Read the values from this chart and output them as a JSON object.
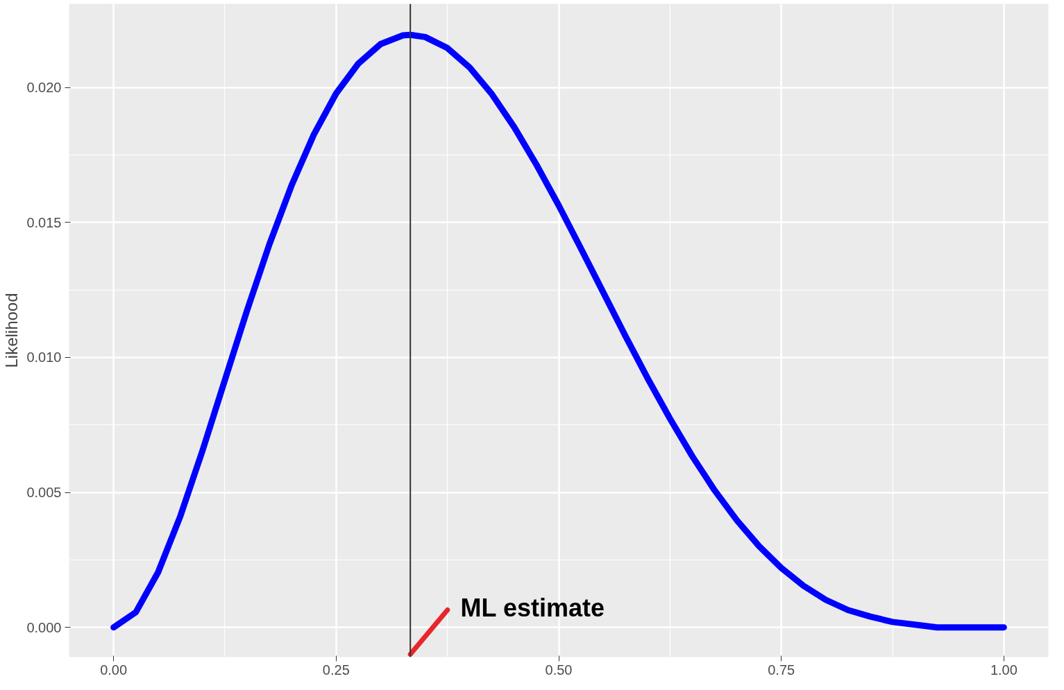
{
  "chart_data": {
    "type": "line",
    "ylabel": "Likelihood",
    "x": [
      0,
      0.025,
      0.05,
      0.075,
      0.1,
      0.125,
      0.15,
      0.175,
      0.2,
      0.225,
      0.25,
      0.275,
      0.3,
      0.325,
      0.3333,
      0.35,
      0.375,
      0.4,
      0.425,
      0.45,
      0.475,
      0.5,
      0.525,
      0.55,
      0.575,
      0.6,
      0.625,
      0.65,
      0.675,
      0.7,
      0.725,
      0.75,
      0.775,
      0.8,
      0.825,
      0.85,
      0.875,
      0.9,
      0.925,
      0.95,
      0.975,
      1
    ],
    "series": [
      {
        "color": "#0000ff",
        "values": [
          0,
          0.00056,
          0.00204,
          0.00412,
          0.00656,
          0.00916,
          0.01175,
          0.01419,
          0.01638,
          0.01826,
          0.01978,
          0.02089,
          0.02161,
          0.02193,
          0.02195,
          0.02187,
          0.02146,
          0.02074,
          0.01975,
          0.01853,
          0.01714,
          0.01563,
          0.01403,
          0.01241,
          0.01079,
          0.00922,
          0.00773,
          0.00634,
          0.00508,
          0.00397,
          0.00301,
          0.0022,
          0.00154,
          0.00102,
          0.00064,
          0.0004,
          0.0002,
          0.0001,
          0,
          0,
          0,
          0
        ]
      }
    ],
    "xlim": [
      -0.05,
      1.05
    ],
    "ylim": [
      -0.0011,
      0.0231
    ],
    "xticks": [
      {
        "value": 0,
        "label": "0.00"
      },
      {
        "value": 0.25,
        "label": "0.25"
      },
      {
        "value": 0.5,
        "label": "0.50"
      },
      {
        "value": 0.75,
        "label": "0.75"
      },
      {
        "value": 1,
        "label": "1.00"
      }
    ],
    "yticks": [
      {
        "value": 0,
        "label": "0.000"
      },
      {
        "value": 0.005,
        "label": "0.005"
      },
      {
        "value": 0.01,
        "label": "0.010"
      },
      {
        "value": 0.015,
        "label": "0.015"
      },
      {
        "value": 0.02,
        "label": "0.020"
      }
    ],
    "ref_lines": [
      {
        "axis": "x",
        "value": 0.3333,
        "color": "#333333"
      }
    ],
    "annotations": [
      {
        "text": "ML estimate",
        "x": 0.3333,
        "y": -0.001
      }
    ],
    "grid": true,
    "marker": "none",
    "line_style": "solid"
  }
}
